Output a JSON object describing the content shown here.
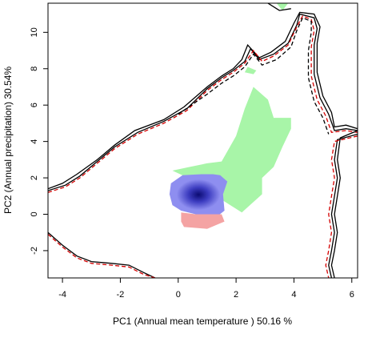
{
  "chart_data": {
    "type": "area",
    "title": "",
    "xlabel": "PC1 (Annual mean temperature ) 50.16 %",
    "ylabel": "PC2 (Annual precipitation) 30.54%",
    "xlim": [
      -4.5,
      6.2
    ],
    "ylim": [
      -3.5,
      11.6
    ],
    "xticks": [
      -4,
      -2,
      0,
      2,
      4,
      6
    ],
    "yticks": [
      -2,
      0,
      2,
      4,
      6,
      8,
      10
    ],
    "grid": false,
    "legend": "none",
    "colors": {
      "green_region": "#a8f5a8",
      "blue_region": "#8e8ef0",
      "blue_core": "#0b0b72",
      "red_region": "#f4a3a3",
      "outline_black": "#000000",
      "outline_red": "#d40000"
    },
    "regions": [
      {
        "name": "",
        "fill": "green",
        "polygon": [
          [
            1.5,
            2.9
          ],
          [
            2.0,
            4.3
          ],
          [
            2.3,
            5.8
          ],
          [
            2.6,
            7.0
          ],
          [
            3.1,
            6.3
          ],
          [
            3.3,
            5.3
          ],
          [
            3.9,
            5.3
          ],
          [
            3.9,
            4.7
          ],
          [
            3.6,
            3.7
          ],
          [
            3.3,
            2.6
          ],
          [
            2.9,
            2.0
          ],
          [
            2.9,
            1.1
          ],
          [
            2.2,
            0.1
          ],
          [
            1.5,
            0.8
          ],
          [
            0.8,
            1.7
          ],
          [
            0.2,
            2.1
          ],
          [
            -0.2,
            2.4
          ],
          [
            0.4,
            2.6
          ],
          [
            1.0,
            2.8
          ]
        ]
      },
      {
        "name": "",
        "fill": "blue",
        "polygon": [
          [
            -0.25,
            1.7
          ],
          [
            0.15,
            2.15
          ],
          [
            0.8,
            2.2
          ],
          [
            1.2,
            2.2
          ],
          [
            1.45,
            2.15
          ],
          [
            1.7,
            1.8
          ],
          [
            1.55,
            1.1
          ],
          [
            1.6,
            0.2
          ],
          [
            1.4,
            -0.05
          ],
          [
            0.6,
            0.0
          ],
          [
            0.1,
            0.2
          ],
          [
            -0.2,
            0.5
          ],
          [
            -0.3,
            1.1
          ]
        ]
      },
      {
        "name": "",
        "fill": "red",
        "polygon": [
          [
            0.1,
            0.1
          ],
          [
            0.6,
            0.0
          ],
          [
            1.5,
            0.0
          ],
          [
            1.6,
            -0.4
          ],
          [
            1.3,
            -0.6
          ],
          [
            1.0,
            -0.8
          ],
          [
            0.2,
            -0.7
          ],
          [
            0.1,
            -0.4
          ]
        ]
      },
      {
        "name": "",
        "fill": "green",
        "polygon": [
          [
            2.3,
            7.8
          ],
          [
            2.6,
            7.7
          ],
          [
            2.7,
            7.9
          ],
          [
            2.4,
            8.1
          ]
        ]
      },
      {
        "name": "",
        "fill": "green",
        "polygon": [
          [
            3.4,
            11.6
          ],
          [
            3.8,
            11.6
          ],
          [
            3.6,
            11.2
          ]
        ]
      }
    ],
    "outlines": [
      {
        "name": "",
        "color": "black",
        "style": "solid",
        "points": [
          [
            -4.5,
            1.4
          ],
          [
            -4.0,
            1.7
          ],
          [
            -3.5,
            2.2
          ],
          [
            -2.8,
            3.0
          ],
          [
            -2.2,
            3.8
          ],
          [
            -1.5,
            4.6
          ],
          [
            -0.5,
            5.2
          ],
          [
            0.2,
            5.9
          ],
          [
            1.0,
            7.0
          ],
          [
            1.5,
            7.6
          ],
          [
            1.9,
            8.0
          ],
          [
            2.2,
            8.5
          ],
          [
            2.4,
            9.3
          ],
          [
            2.8,
            8.6
          ],
          [
            3.2,
            8.9
          ],
          [
            3.7,
            9.5
          ],
          [
            4.0,
            10.5
          ],
          [
            4.2,
            11.1
          ],
          [
            4.7,
            11.0
          ],
          [
            4.9,
            10.3
          ],
          [
            4.8,
            9.4
          ],
          [
            4.8,
            7.8
          ],
          [
            5.0,
            6.5
          ],
          [
            5.3,
            5.6
          ],
          [
            5.4,
            4.8
          ],
          [
            5.8,
            4.9
          ],
          [
            6.2,
            4.7
          ]
        ]
      },
      {
        "name": "",
        "color": "black",
        "style": "solid",
        "points": [
          [
            -4.5,
            1.3
          ],
          [
            -3.9,
            1.6
          ],
          [
            -3.4,
            2.1
          ],
          [
            -2.8,
            2.9
          ],
          [
            -2.2,
            3.7
          ],
          [
            -1.4,
            4.5
          ],
          [
            -0.5,
            5.1
          ],
          [
            0.3,
            5.8
          ],
          [
            1.0,
            6.9
          ],
          [
            1.5,
            7.5
          ],
          [
            1.9,
            7.9
          ],
          [
            2.3,
            8.4
          ],
          [
            2.5,
            9.1
          ],
          [
            2.8,
            8.5
          ],
          [
            3.3,
            8.8
          ],
          [
            3.8,
            9.4
          ],
          [
            4.1,
            10.4
          ],
          [
            4.2,
            11.0
          ],
          [
            4.7,
            10.8
          ],
          [
            4.8,
            10.2
          ],
          [
            4.7,
            9.3
          ],
          [
            4.7,
            7.7
          ],
          [
            4.9,
            6.4
          ],
          [
            5.2,
            5.5
          ],
          [
            5.4,
            4.6
          ],
          [
            5.8,
            4.7
          ],
          [
            6.2,
            4.6
          ]
        ]
      },
      {
        "name": "",
        "color": "red",
        "style": "dashed",
        "points": [
          [
            -4.5,
            1.2
          ],
          [
            -3.9,
            1.5
          ],
          [
            -3.4,
            2.0
          ],
          [
            -2.8,
            2.8
          ],
          [
            -2.2,
            3.6
          ],
          [
            -1.4,
            4.4
          ],
          [
            -0.5,
            5.0
          ],
          [
            0.3,
            5.7
          ],
          [
            1.0,
            6.8
          ],
          [
            1.5,
            7.4
          ],
          [
            1.9,
            7.8
          ],
          [
            2.3,
            8.3
          ],
          [
            2.6,
            9.0
          ],
          [
            2.9,
            8.4
          ],
          [
            3.3,
            8.7
          ],
          [
            3.8,
            9.3
          ],
          [
            4.1,
            10.3
          ],
          [
            4.3,
            10.9
          ],
          [
            4.6,
            10.7
          ],
          [
            4.7,
            10.1
          ],
          [
            4.6,
            9.2
          ],
          [
            4.6,
            7.6
          ],
          [
            4.8,
            6.3
          ],
          [
            5.1,
            5.4
          ],
          [
            5.3,
            4.5
          ],
          [
            5.8,
            4.6
          ],
          [
            6.2,
            4.5
          ]
        ]
      },
      {
        "name": "",
        "color": "black",
        "style": "dashed",
        "points": [
          [
            0.0,
            5.5
          ],
          [
            1.0,
            6.6
          ],
          [
            1.5,
            7.2
          ],
          [
            1.9,
            7.6
          ],
          [
            2.3,
            8.1
          ],
          [
            2.6,
            8.8
          ],
          [
            2.9,
            8.2
          ],
          [
            3.4,
            8.5
          ],
          [
            3.9,
            9.2
          ],
          [
            4.1,
            10.1
          ],
          [
            4.3,
            10.8
          ],
          [
            4.6,
            10.6
          ],
          [
            4.6,
            10.0
          ],
          [
            4.5,
            9.0
          ],
          [
            4.5,
            7.5
          ],
          [
            4.7,
            6.2
          ],
          [
            5.0,
            5.3
          ],
          [
            5.2,
            4.4
          ]
        ]
      },
      {
        "name": "",
        "color": "black",
        "style": "solid",
        "points": [
          [
            -4.5,
            -1.0
          ],
          [
            -4.0,
            -1.7
          ],
          [
            -3.5,
            -2.3
          ],
          [
            -3.0,
            -2.6
          ],
          [
            -2.3,
            -2.7
          ],
          [
            -1.7,
            -2.8
          ],
          [
            -1.2,
            -3.2
          ],
          [
            -0.8,
            -3.5
          ]
        ]
      },
      {
        "name": "",
        "color": "red",
        "style": "dashed",
        "points": [
          [
            -4.5,
            -1.1
          ],
          [
            -4.0,
            -1.8
          ],
          [
            -3.5,
            -2.4
          ],
          [
            -3.0,
            -2.7
          ],
          [
            -2.3,
            -2.8
          ],
          [
            -1.7,
            -2.9
          ],
          [
            -1.2,
            -3.3
          ],
          [
            -0.8,
            -3.5
          ]
        ]
      },
      {
        "name": "",
        "color": "black",
        "style": "solid",
        "points": [
          [
            6.2,
            4.6
          ],
          [
            5.6,
            4.2
          ],
          [
            5.5,
            3.0
          ],
          [
            5.6,
            2.0
          ],
          [
            5.5,
            1.0
          ],
          [
            5.4,
            0.0
          ],
          [
            5.5,
            -1.0
          ],
          [
            5.4,
            -2.0
          ],
          [
            5.3,
            -2.8
          ],
          [
            5.4,
            -3.5
          ]
        ]
      },
      {
        "name": "",
        "color": "black",
        "style": "solid",
        "points": [
          [
            6.2,
            4.4
          ],
          [
            5.5,
            4.1
          ],
          [
            5.4,
            3.0
          ],
          [
            5.5,
            2.0
          ],
          [
            5.4,
            1.0
          ],
          [
            5.3,
            0.0
          ],
          [
            5.4,
            -1.0
          ],
          [
            5.3,
            -2.0
          ],
          [
            5.2,
            -2.8
          ],
          [
            5.3,
            -3.5
          ]
        ]
      },
      {
        "name": "",
        "color": "red",
        "style": "dashed",
        "points": [
          [
            6.2,
            4.3
          ],
          [
            5.4,
            4.0
          ],
          [
            5.3,
            3.0
          ],
          [
            5.4,
            2.0
          ],
          [
            5.3,
            1.0
          ],
          [
            5.2,
            0.0
          ],
          [
            5.3,
            -1.0
          ],
          [
            5.2,
            -2.0
          ],
          [
            5.1,
            -2.8
          ],
          [
            5.2,
            -3.5
          ]
        ]
      },
      {
        "name": "",
        "color": "black",
        "style": "solid",
        "points": [
          [
            3.0,
            11.7
          ],
          [
            3.5,
            11.2
          ],
          [
            3.9,
            11.3
          ]
        ]
      }
    ]
  }
}
